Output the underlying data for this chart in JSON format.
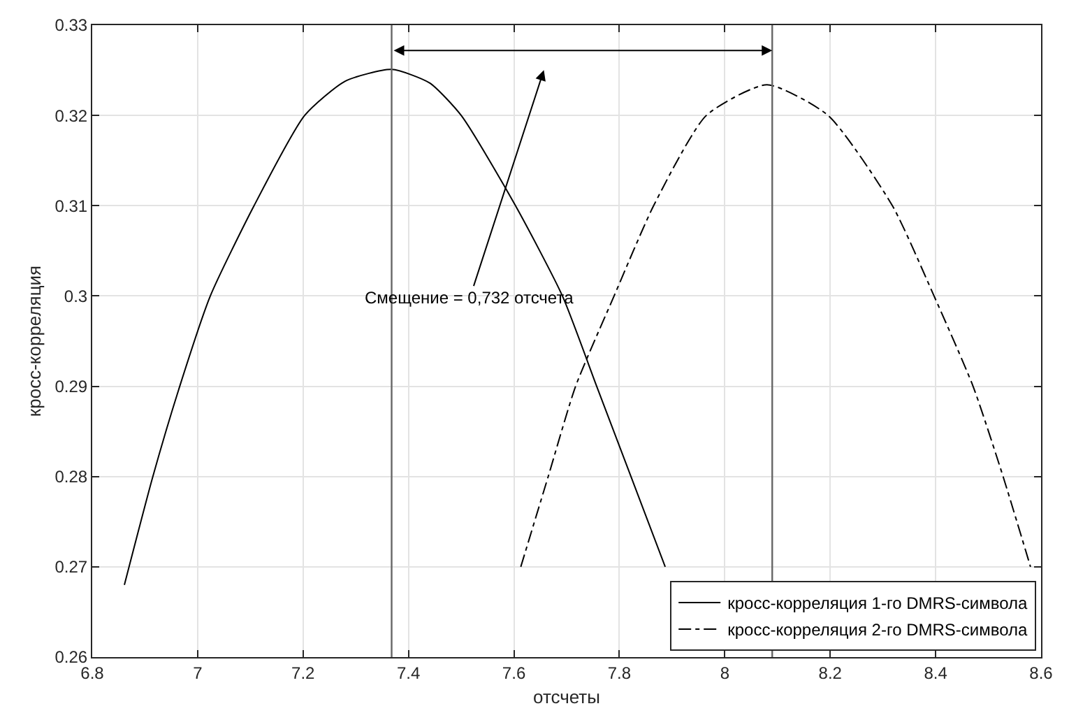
{
  "chart_data": {
    "type": "line",
    "xlabel": "отсчеты",
    "ylabel": "кросс-корреляция",
    "series": [
      {
        "name": "кросс-корреляция 1-го DMRS-символа",
        "color": "#000000",
        "line_style": "solid",
        "x": [
          6.861,
          6.915,
          6.966,
          7.024,
          7.107,
          7.203,
          7.28,
          7.368,
          7.44,
          7.5,
          7.603,
          7.692,
          7.757,
          7.822,
          7.887
        ],
        "values": [
          0.268,
          0.28,
          0.29,
          0.3,
          0.31,
          0.32,
          0.3238,
          0.3251,
          0.3236,
          0.32,
          0.31,
          0.3,
          0.29,
          0.28,
          0.27
        ]
      },
      {
        "name": "кросс-корреляция 2-го DMRS-символа",
        "color": "#000000",
        "line_style": "dashdot",
        "x": [
          7.613,
          7.665,
          7.717,
          7.79,
          7.865,
          7.965,
          8.08,
          8.196,
          8.318,
          8.397,
          8.471,
          8.528,
          8.58
        ],
        "values": [
          0.27,
          0.28,
          0.29,
          0.3,
          0.31,
          0.32,
          0.3234,
          0.32,
          0.31,
          0.3,
          0.29,
          0.28,
          0.27
        ]
      }
    ],
    "xlim": [
      6.8,
      8.6
    ],
    "xticks": [
      6.8,
      7,
      7.2,
      7.4,
      7.6,
      7.8,
      8,
      8.2,
      8.4,
      8.6
    ],
    "ylim": [
      0.26,
      0.33
    ],
    "yticks": [
      0.26,
      0.27,
      0.28,
      0.29,
      0.3,
      0.31,
      0.32,
      0.33
    ],
    "ref_lines": [
      {
        "axis": "x",
        "value": 7.368,
        "color": "#666666"
      },
      {
        "axis": "x",
        "value": 8.09,
        "color": "#666666"
      }
    ],
    "annotations": [
      "Смещение = 0,732 отсчета"
    ],
    "grid": true,
    "legend": "bottom right",
    "marker": "none"
  }
}
